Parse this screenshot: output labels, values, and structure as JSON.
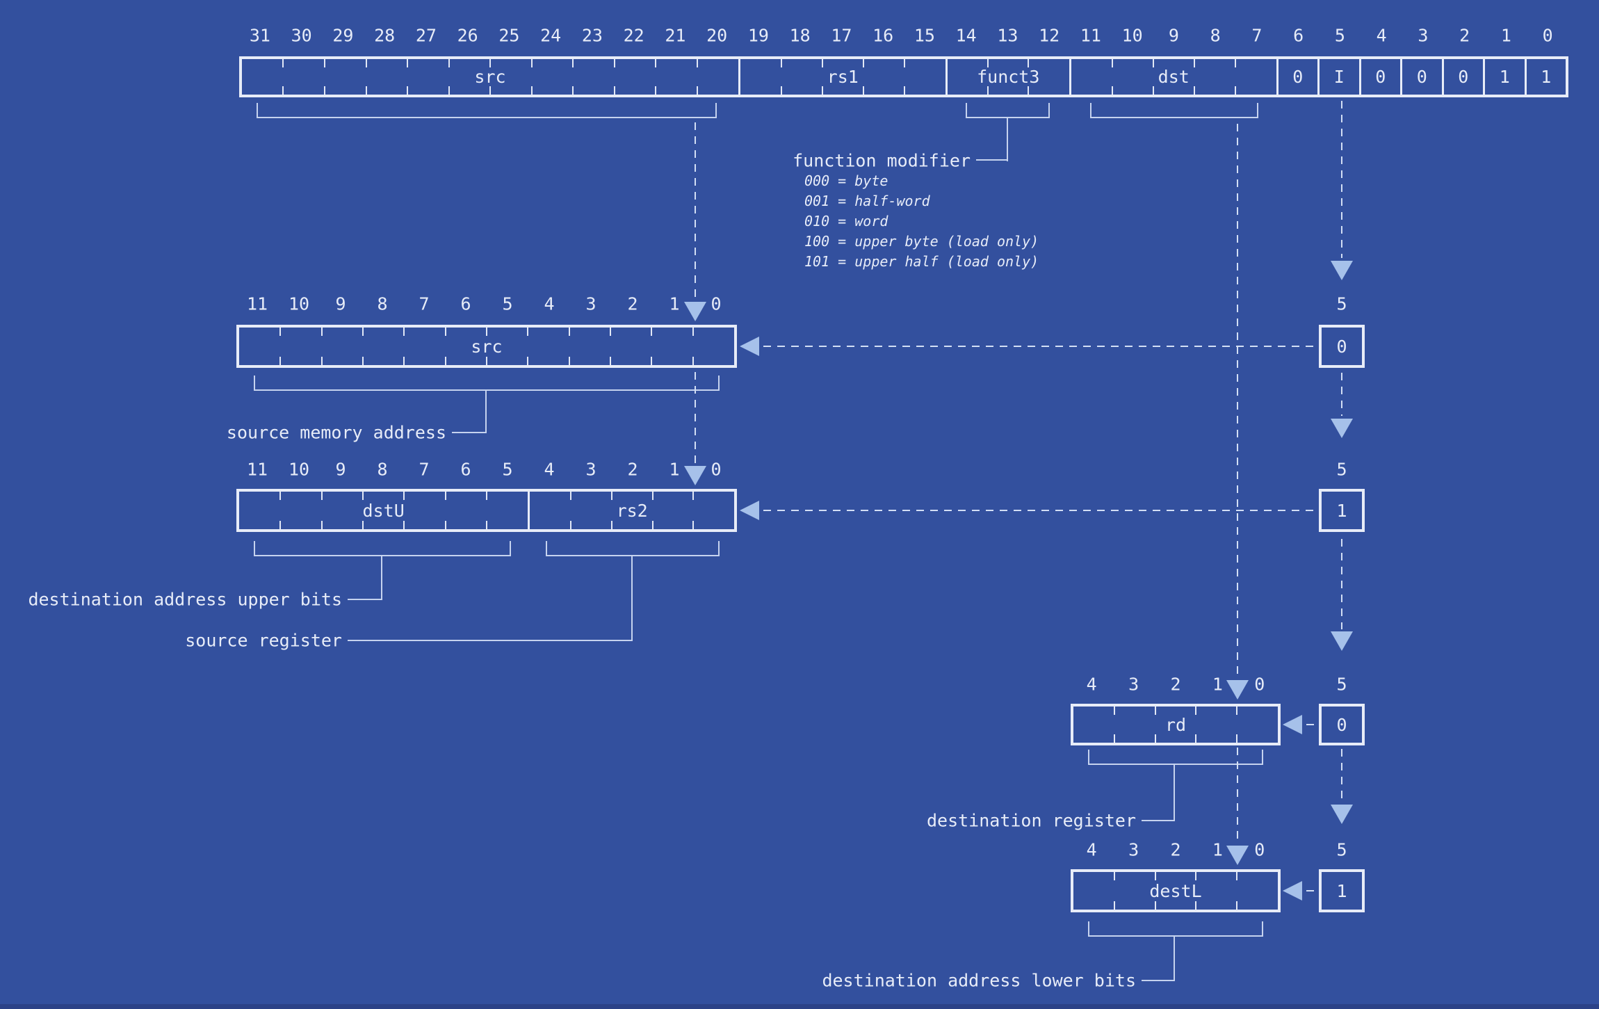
{
  "colors": {
    "background": "#33509E",
    "box_border": "#E7ECF8",
    "text": "#E7ECF8",
    "brace_line": "#C6D3EF",
    "dashed_line": "#D3DFF5",
    "arrow": "#A6C1EA",
    "bottom_strip": "#2C4287"
  },
  "instruction_register": {
    "bit_numbers": [
      "31",
      "30",
      "29",
      "28",
      "27",
      "26",
      "25",
      "24",
      "23",
      "22",
      "21",
      "20",
      "19",
      "18",
      "17",
      "16",
      "15",
      "14",
      "13",
      "12",
      "11",
      "10",
      "9",
      "8",
      "7",
      "6",
      "5",
      "4",
      "3",
      "2",
      "1",
      "0"
    ],
    "fields": [
      {
        "label": "src",
        "bits": 12
      },
      {
        "label": "rs1",
        "bits": 5
      },
      {
        "label": "funct3",
        "bits": 3
      },
      {
        "label": "dst",
        "bits": 5
      },
      {
        "label": "0",
        "bits": 1
      },
      {
        "label": "I",
        "bits": 1
      },
      {
        "label": "0",
        "bits": 1
      },
      {
        "label": "0",
        "bits": 1
      },
      {
        "label": "0",
        "bits": 1
      },
      {
        "label": "1",
        "bits": 1
      },
      {
        "label": "1",
        "bits": 1
      }
    ]
  },
  "function_modifier": {
    "title": "function modifier",
    "options": [
      "000 = byte",
      "001 = half-word",
      "010 = word",
      "100 = upper byte (load only)",
      "101 = upper half (load only)"
    ]
  },
  "src_register": {
    "bit_numbers": [
      "11",
      "10",
      "9",
      "8",
      "7",
      "6",
      "5",
      "4",
      "3",
      "2",
      "1",
      "0"
    ],
    "fields": [
      {
        "label": "src",
        "bits": 12
      }
    ],
    "caption": "source memory address"
  },
  "upper_register": {
    "bit_numbers": [
      "11",
      "10",
      "9",
      "8",
      "7",
      "6",
      "5",
      "4",
      "3",
      "2",
      "1",
      "0"
    ],
    "fields": [
      {
        "label": "dstU",
        "bits": 7
      },
      {
        "label": "rs2",
        "bits": 5
      }
    ],
    "captions": {
      "dstU": "destination address upper bits",
      "rs2": "source register"
    }
  },
  "rd_register": {
    "bit_numbers": [
      "4",
      "3",
      "2",
      "1",
      "0"
    ],
    "fields": [
      {
        "label": "rd",
        "bits": 5
      }
    ],
    "caption": "destination register"
  },
  "destl_register": {
    "bit_numbers": [
      "4",
      "3",
      "2",
      "1",
      "0"
    ],
    "fields": [
      {
        "label": "destL",
        "bits": 5
      }
    ],
    "caption": "destination address lower bits"
  },
  "width_tags": [
    {
      "width": "5",
      "value": "0"
    },
    {
      "width": "5",
      "value": "1"
    },
    {
      "width": "5",
      "value": "0"
    },
    {
      "width": "5",
      "value": "1"
    }
  ]
}
